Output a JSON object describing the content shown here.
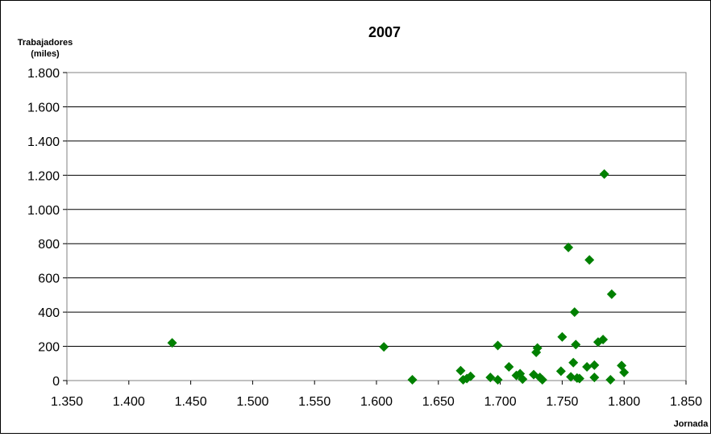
{
  "chart_data": {
    "type": "scatter",
    "title": "2007",
    "ylabel_line1": "Trabajadores",
    "ylabel_line2": "(miles)",
    "xlabel": "Jornada",
    "xlim": [
      1350,
      1850
    ],
    "ylim": [
      0,
      1800
    ],
    "xticks": [
      1350,
      1400,
      1450,
      1500,
      1550,
      1600,
      1650,
      1700,
      1750,
      1800,
      1850
    ],
    "xtick_labels": [
      "1.350",
      "1.400",
      "1.450",
      "1.500",
      "1.550",
      "1.600",
      "1.650",
      "1.700",
      "1.750",
      "1.800",
      "1.850"
    ],
    "yticks": [
      0,
      200,
      400,
      600,
      800,
      1000,
      1200,
      1400,
      1600,
      1800
    ],
    "ytick_labels": [
      "0",
      "200",
      "400",
      "600",
      "800",
      "1.000",
      "1.200",
      "1.400",
      "1.600",
      "1.800"
    ],
    "grid": "horizontal",
    "legend": "none",
    "marker": "diamond",
    "color": "#008000",
    "points": [
      {
        "x": 1435,
        "y": 220
      },
      {
        "x": 1606,
        "y": 197
      },
      {
        "x": 1629,
        "y": 5
      },
      {
        "x": 1668,
        "y": 58
      },
      {
        "x": 1670,
        "y": 5
      },
      {
        "x": 1673,
        "y": 12
      },
      {
        "x": 1676,
        "y": 25
      },
      {
        "x": 1692,
        "y": 18
      },
      {
        "x": 1698,
        "y": 5
      },
      {
        "x": 1698,
        "y": 205
      },
      {
        "x": 1707,
        "y": 80
      },
      {
        "x": 1713,
        "y": 30
      },
      {
        "x": 1716,
        "y": 40
      },
      {
        "x": 1718,
        "y": 8
      },
      {
        "x": 1727,
        "y": 35
      },
      {
        "x": 1729,
        "y": 165
      },
      {
        "x": 1730,
        "y": 190
      },
      {
        "x": 1732,
        "y": 18
      },
      {
        "x": 1734,
        "y": 5
      },
      {
        "x": 1749,
        "y": 55
      },
      {
        "x": 1750,
        "y": 255
      },
      {
        "x": 1755,
        "y": 778
      },
      {
        "x": 1757,
        "y": 22
      },
      {
        "x": 1759,
        "y": 105
      },
      {
        "x": 1760,
        "y": 400
      },
      {
        "x": 1761,
        "y": 210
      },
      {
        "x": 1762,
        "y": 15
      },
      {
        "x": 1764,
        "y": 12
      },
      {
        "x": 1770,
        "y": 80
      },
      {
        "x": 1772,
        "y": 705
      },
      {
        "x": 1776,
        "y": 18
      },
      {
        "x": 1776,
        "y": 90
      },
      {
        "x": 1779,
        "y": 225
      },
      {
        "x": 1783,
        "y": 240
      },
      {
        "x": 1784,
        "y": 1207
      },
      {
        "x": 1789,
        "y": 5
      },
      {
        "x": 1790,
        "y": 505
      },
      {
        "x": 1798,
        "y": 88
      },
      {
        "x": 1800,
        "y": 48
      }
    ]
  }
}
